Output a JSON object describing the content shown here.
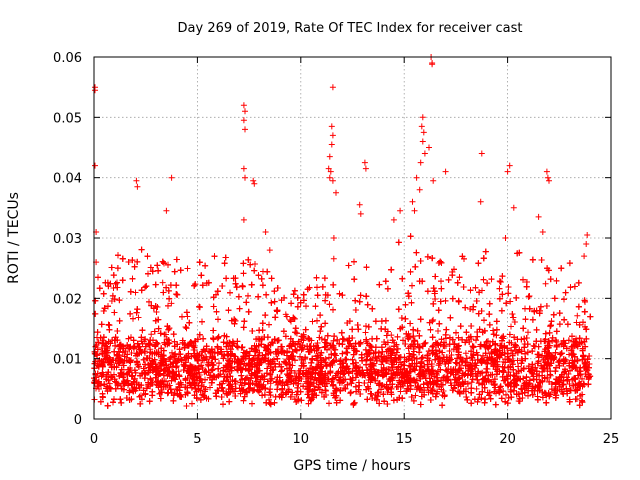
{
  "chart_data": {
    "type": "scatter",
    "title": "Day 269 of 2019, Rate Of TEC Index for receiver cast",
    "xlabel": "GPS time / hours",
    "ylabel": "ROTI / TECUs",
    "xlim": [
      0,
      25
    ],
    "ylim": [
      0,
      0.06
    ],
    "xticks": [
      0,
      5,
      10,
      15,
      20,
      25
    ],
    "xtick_labels": [
      "0",
      "5",
      "10",
      "15",
      "20",
      "25"
    ],
    "yticks": [
      0,
      0.01,
      0.02,
      0.03,
      0.04,
      0.05,
      0.06
    ],
    "ytick_labels": [
      "0",
      "0.01",
      "0.02",
      "0.03",
      "0.04",
      "0.05",
      "0.06"
    ],
    "grid": true,
    "marker": "+",
    "color": "#ff0000",
    "series": [
      {
        "name": "ROTI",
        "points": [
          [
            0.05,
            0.055
          ],
          [
            0.05,
            0.0545
          ],
          [
            0.05,
            0.042
          ],
          [
            0.1,
            0.026
          ],
          [
            0.1,
            0.031
          ],
          [
            2.05,
            0.0395
          ],
          [
            2.1,
            0.0385
          ],
          [
            3.75,
            0.04
          ],
          [
            3.5,
            0.0345
          ],
          [
            7.25,
            0.052
          ],
          [
            7.3,
            0.051
          ],
          [
            7.25,
            0.0495
          ],
          [
            7.3,
            0.048
          ],
          [
            7.25,
            0.0415
          ],
          [
            7.3,
            0.04
          ],
          [
            7.25,
            0.033
          ],
          [
            7.7,
            0.0395
          ],
          [
            7.75,
            0.039
          ],
          [
            8.3,
            0.031
          ],
          [
            8.5,
            0.028
          ],
          [
            11.55,
            0.055
          ],
          [
            11.5,
            0.0485
          ],
          [
            11.55,
            0.047
          ],
          [
            11.5,
            0.0455
          ],
          [
            11.4,
            0.0435
          ],
          [
            11.35,
            0.0415
          ],
          [
            11.45,
            0.041
          ],
          [
            11.55,
            0.0395
          ],
          [
            11.4,
            0.04
          ],
          [
            11.7,
            0.0375
          ],
          [
            11.6,
            0.03
          ],
          [
            13.1,
            0.0425
          ],
          [
            13.15,
            0.0415
          ],
          [
            12.85,
            0.0355
          ],
          [
            12.9,
            0.034
          ],
          [
            14.5,
            0.033
          ],
          [
            14.8,
            0.0345
          ],
          [
            15.9,
            0.05
          ],
          [
            15.85,
            0.0485
          ],
          [
            15.95,
            0.0475
          ],
          [
            15.9,
            0.046
          ],
          [
            15.8,
            0.0425
          ],
          [
            16.0,
            0.044
          ],
          [
            15.6,
            0.04
          ],
          [
            15.75,
            0.038
          ],
          [
            15.4,
            0.036
          ],
          [
            15.5,
            0.0345
          ],
          [
            16.3,
            0.06
          ],
          [
            16.35,
            0.059
          ],
          [
            16.35,
            0.0588
          ],
          [
            16.4,
            0.0395
          ],
          [
            16.2,
            0.045
          ],
          [
            17.0,
            0.041
          ],
          [
            18.75,
            0.044
          ],
          [
            18.7,
            0.036
          ],
          [
            20.1,
            0.042
          ],
          [
            20.0,
            0.041
          ],
          [
            20.3,
            0.035
          ],
          [
            19.9,
            0.03
          ],
          [
            21.9,
            0.041
          ],
          [
            21.95,
            0.04
          ],
          [
            22.0,
            0.0395
          ],
          [
            21.5,
            0.0335
          ],
          [
            21.7,
            0.031
          ],
          [
            23.85,
            0.0305
          ],
          [
            23.8,
            0.029
          ],
          [
            23.7,
            0.027
          ]
        ],
        "bulk": {
          "x_range": [
            0,
            24
          ],
          "count": 9000,
          "y_floor": 0.0015,
          "typical_y_range": [
            0.004,
            0.012
          ],
          "spread": 0.004,
          "upper_envelope": [
            [
              0,
              0.025
            ],
            [
              1,
              0.027
            ],
            [
              2,
              0.029
            ],
            [
              3,
              0.026
            ],
            [
              4,
              0.028
            ],
            [
              5,
              0.027
            ],
            [
              6,
              0.028
            ],
            [
              7,
              0.027
            ],
            [
              8,
              0.026
            ],
            [
              9,
              0.022
            ],
            [
              10,
              0.021
            ],
            [
              11,
              0.026
            ],
            [
              12,
              0.027
            ],
            [
              13,
              0.029
            ],
            [
              14,
              0.028
            ],
            [
              15,
              0.031
            ],
            [
              16,
              0.032
            ],
            [
              17,
              0.027
            ],
            [
              18,
              0.027
            ],
            [
              19,
              0.028
            ],
            [
              20,
              0.029
            ],
            [
              21,
              0.027
            ],
            [
              22,
              0.027
            ],
            [
              23,
              0.026
            ],
            [
              24,
              0.025
            ]
          ]
        }
      }
    ]
  }
}
